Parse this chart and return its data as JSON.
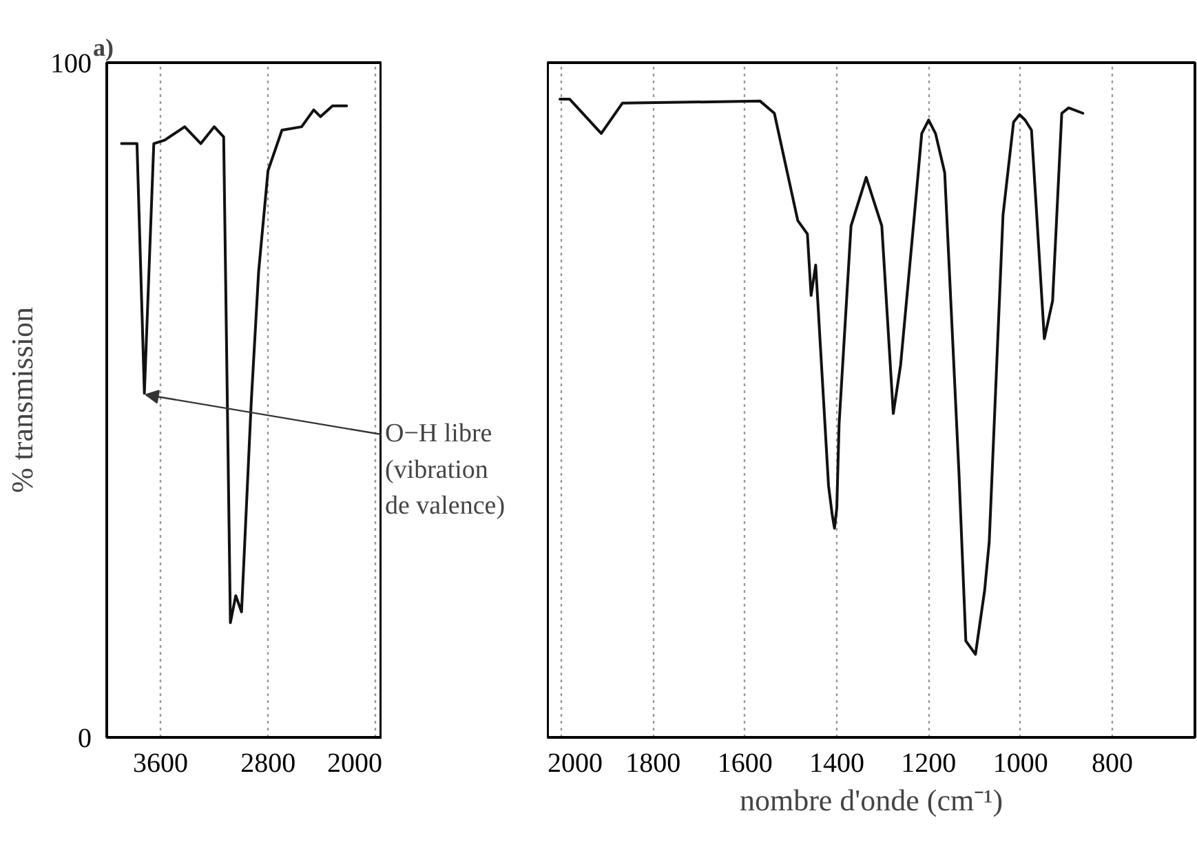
{
  "chart_data": [
    {
      "type": "line",
      "title": "a)",
      "ylabel": "% transmission",
      "annotations": [
        {
          "text": "O−H libre\n(vibration\nde valence)",
          "x": 3720,
          "y": 51
        }
      ],
      "x": [
        3890,
        3775,
        3720,
        3650,
        3570,
        3420,
        3300,
        3200,
        3130,
        3080,
        3040,
        2997,
        2925,
        2870,
        2800,
        2696,
        2550,
        2460,
        2410,
        2320,
        2215
      ],
      "series": [
        {
          "color": "#111111",
          "values": [
            88,
            88,
            51,
            88,
            88.5,
            90.5,
            88,
            90.5,
            89,
            17,
            21,
            18.6,
            49.6,
            69,
            84,
            90,
            90.5,
            93,
            92,
            93.6,
            93.6
          ]
        }
      ],
      "xlim": [
        4000,
        1950
      ],
      "ylim": [
        0,
        100
      ],
      "xticks": [
        3600,
        2800,
        2000
      ],
      "yticks": [
        0,
        100
      ],
      "grid": "x"
    },
    {
      "type": "line",
      "xlabel": "nombre d'onde (cm⁻¹)",
      "x": [
        2003,
        1982,
        1913,
        1867,
        1567,
        1536,
        1485,
        1464,
        1456,
        1446,
        1418,
        1410,
        1405,
        1400,
        1395,
        1369,
        1336,
        1302,
        1277,
        1261,
        1231,
        1215,
        1200,
        1185,
        1165,
        1134,
        1119,
        1098,
        1078,
        1068,
        1038,
        1015,
        1002,
        990,
        976,
        948,
        930,
        910,
        895,
        864
      ],
      "series": [
        {
          "color": "#111111",
          "values": [
            94.6,
            94.6,
            89.5,
            94,
            94.3,
            92.5,
            76.6,
            74.6,
            65.5,
            70,
            37.3,
            33,
            31,
            34,
            46.4,
            75.8,
            83,
            75.8,
            48,
            55.2,
            77.4,
            89.5,
            91.5,
            89.5,
            83.7,
            39.3,
            14.3,
            12.3,
            21.8,
            29,
            77.4,
            91.2,
            92.3,
            91.5,
            90,
            59.1,
            64.7,
            92.5,
            93.3,
            92.5
          ]
        }
      ],
      "xlim": [
        2030,
        620
      ],
      "ylim": [
        0,
        100
      ],
      "xticks": [
        2000,
        1800,
        1600,
        1400,
        1200,
        1000,
        800
      ],
      "tick_labels": "x",
      "grid": "x"
    }
  ]
}
